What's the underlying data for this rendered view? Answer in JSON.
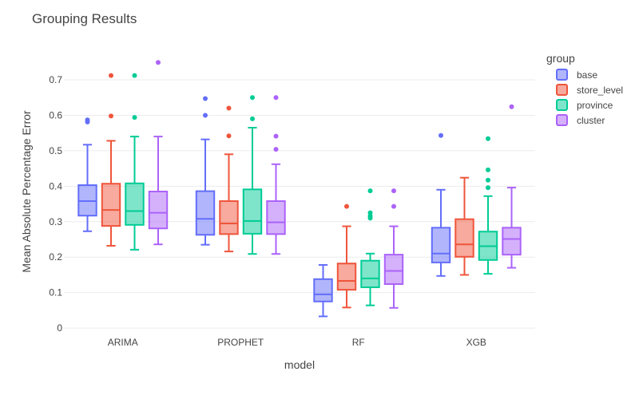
{
  "chart_data": {
    "type": "box",
    "title": "Grouping Results",
    "xlabel": "model",
    "ylabel": "Mean Absolute Percentage Error",
    "categories": [
      "ARIMA",
      "PROPHET",
      "RF",
      "XGB"
    ],
    "yticks": [
      0,
      0.1,
      0.2,
      0.3,
      0.4,
      0.5,
      0.6,
      0.7
    ],
    "ytick_labels": [
      "0",
      "0.1",
      "0.2",
      "0.3",
      "0.4",
      "0.5",
      "0.6",
      "0.7"
    ],
    "ylim": [
      -0.02,
      0.79
    ],
    "grid": true,
    "legend_title": "group",
    "legend_position": "top-right",
    "series": [
      {
        "name": "base",
        "color": "#636efa",
        "boxes": [
          {
            "min": 0.273,
            "q1": 0.317,
            "median": 0.358,
            "q3": 0.403,
            "max": 0.517,
            "outliers": [
              0.581,
              0.587
            ]
          },
          {
            "min": 0.235,
            "q1": 0.263,
            "median": 0.308,
            "q3": 0.386,
            "max": 0.532,
            "outliers": [
              0.6,
              0.647
            ]
          },
          {
            "min": 0.033,
            "q1": 0.075,
            "median": 0.095,
            "q3": 0.138,
            "max": 0.178,
            "outliers": []
          },
          {
            "min": 0.147,
            "q1": 0.185,
            "median": 0.21,
            "q3": 0.283,
            "max": 0.39,
            "outliers": [
              0.543
            ]
          }
        ]
      },
      {
        "name": "store_level",
        "color": "#ef553b",
        "boxes": [
          {
            "min": 0.232,
            "q1": 0.288,
            "median": 0.333,
            "q3": 0.407,
            "max": 0.528,
            "outliers": [
              0.598,
              0.712
            ]
          },
          {
            "min": 0.216,
            "q1": 0.265,
            "median": 0.295,
            "q3": 0.358,
            "max": 0.49,
            "outliers": [
              0.542,
              0.62
            ]
          },
          {
            "min": 0.058,
            "q1": 0.108,
            "median": 0.133,
            "q3": 0.182,
            "max": 0.287,
            "outliers": [
              0.343
            ]
          },
          {
            "min": 0.15,
            "q1": 0.201,
            "median": 0.236,
            "q3": 0.307,
            "max": 0.424,
            "outliers": []
          }
        ]
      },
      {
        "name": "province",
        "color": "#00cc96",
        "boxes": [
          {
            "min": 0.221,
            "q1": 0.291,
            "median": 0.33,
            "q3": 0.408,
            "max": 0.54,
            "outliers": [
              0.594,
              0.712
            ]
          },
          {
            "min": 0.209,
            "q1": 0.266,
            "median": 0.302,
            "q3": 0.391,
            "max": 0.565,
            "outliers": [
              0.59,
              0.65
            ]
          },
          {
            "min": 0.064,
            "q1": 0.115,
            "median": 0.14,
            "q3": 0.19,
            "max": 0.21,
            "outliers": [
              0.31,
              0.316,
              0.325,
              0.387
            ]
          },
          {
            "min": 0.153,
            "q1": 0.192,
            "median": 0.231,
            "q3": 0.272,
            "max": 0.372,
            "outliers": [
              0.396,
              0.417,
              0.446,
              0.534
            ]
          }
        ]
      },
      {
        "name": "cluster",
        "color": "#ab63fa",
        "boxes": [
          {
            "min": 0.236,
            "q1": 0.281,
            "median": 0.325,
            "q3": 0.385,
            "max": 0.54,
            "outliers": [
              0.749
            ]
          },
          {
            "min": 0.209,
            "q1": 0.265,
            "median": 0.298,
            "q3": 0.358,
            "max": 0.462,
            "outliers": [
              0.504,
              0.541,
              0.65
            ]
          },
          {
            "min": 0.057,
            "q1": 0.124,
            "median": 0.161,
            "q3": 0.207,
            "max": 0.287,
            "outliers": [
              0.343,
              0.387
            ]
          },
          {
            "min": 0.17,
            "q1": 0.207,
            "median": 0.251,
            "q3": 0.283,
            "max": 0.396,
            "outliers": [
              0.624
            ]
          }
        ]
      }
    ]
  }
}
